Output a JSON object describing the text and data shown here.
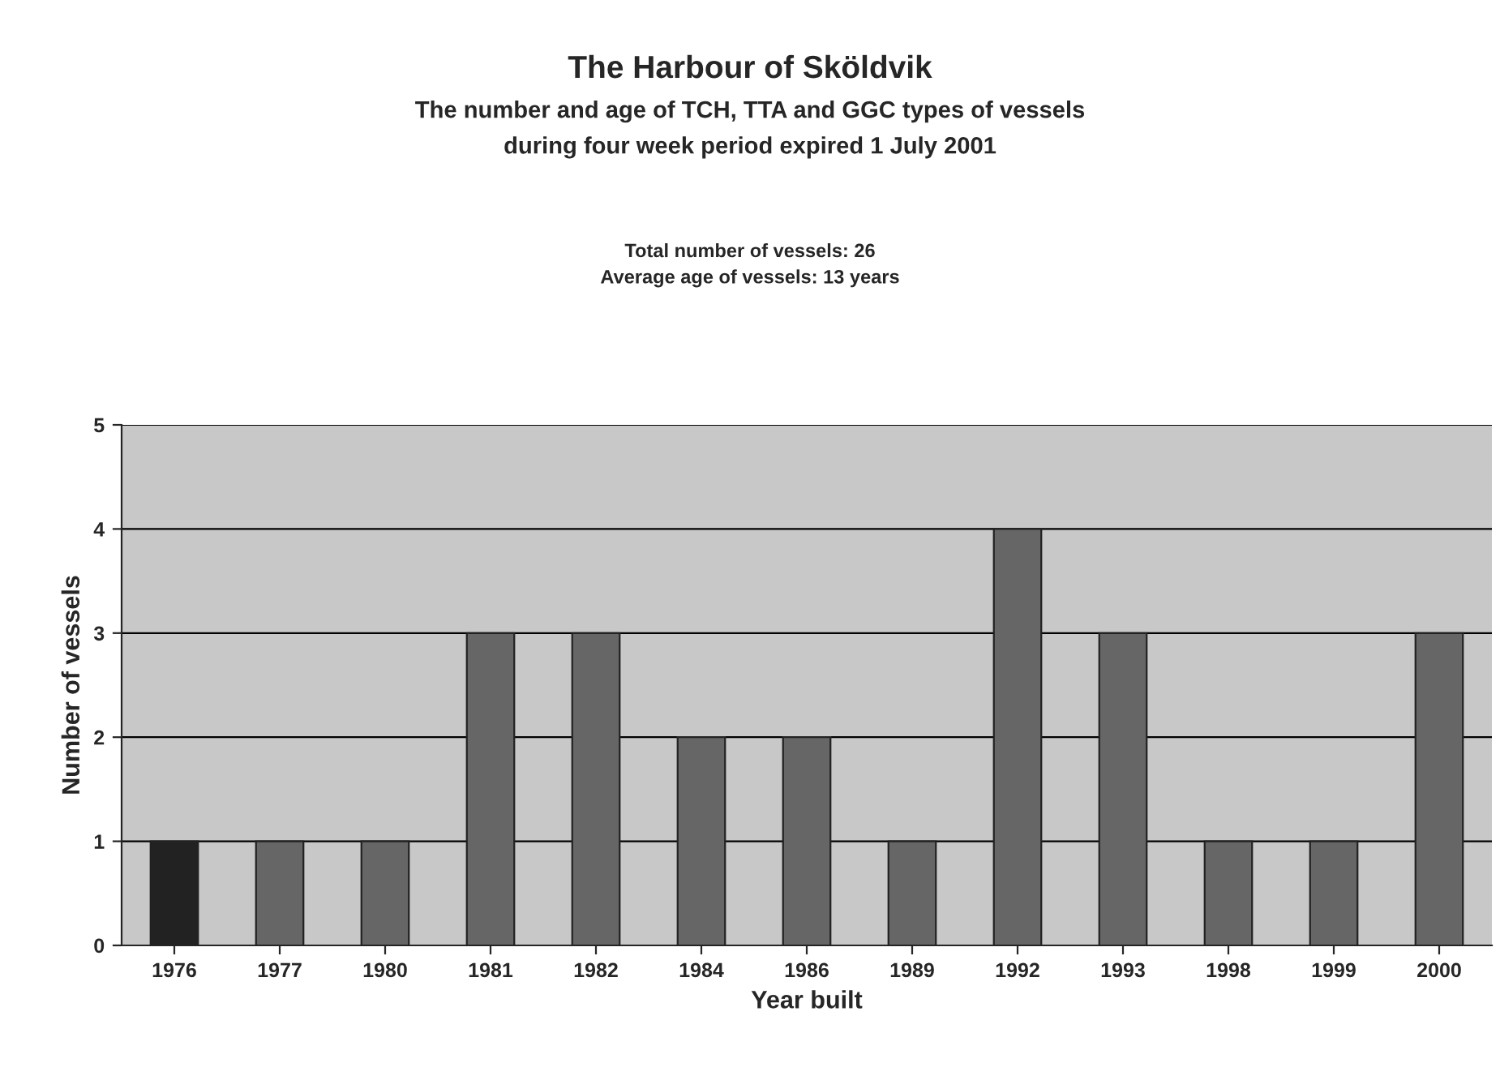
{
  "chart_data": {
    "type": "bar",
    "title": "The Harbour of Sköldvik",
    "subtitle": "The number and age of TCH, TTA and GGC types of vessels\nduring four week period expired 1 July 2001",
    "annotations": [
      "Total number of vessels: 26",
      "Average age of vessels: 13 years"
    ],
    "xlabel": "Year built",
    "ylabel": "Number of vessels",
    "categories": [
      "1976",
      "1977",
      "1980",
      "1981",
      "1982",
      "1984",
      "1986",
      "1989",
      "1992",
      "1993",
      "1998",
      "1999",
      "2000"
    ],
    "values": [
      1,
      1,
      1,
      3,
      3,
      2,
      2,
      1,
      4,
      3,
      1,
      1,
      3
    ],
    "colors": [
      "#222222",
      "#666666",
      "#666666",
      "#666666",
      "#666666",
      "#666666",
      "#666666",
      "#666666",
      "#666666",
      "#666666",
      "#666666",
      "#666666",
      "#666666"
    ],
    "ylim": [
      0,
      5
    ],
    "yticks": [
      0,
      1,
      2,
      3,
      4,
      5
    ],
    "grid": "y",
    "legend": false
  }
}
